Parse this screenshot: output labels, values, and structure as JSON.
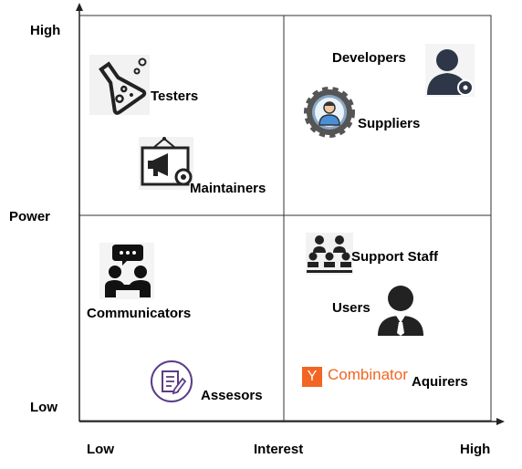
{
  "axes": {
    "y_title": "Power",
    "y_high": "High",
    "y_low": "Low",
    "x_title": "Interest",
    "x_low": "Low",
    "x_high": "High"
  },
  "stakeholders": {
    "testers": "Testers",
    "maintainers": "Maintainers",
    "developers": "Developers",
    "suppliers": "Suppliers",
    "communicators": "Communicators",
    "assesors": "Assesors",
    "support_staff": "Support Staff",
    "users": "Users",
    "aquirers": "Aquirers"
  },
  "logo": {
    "letter": "Y",
    "text": "Combinator",
    "color": "#f26522"
  },
  "icons": {
    "testers": "flask-icon",
    "maintainers": "megaphone-board-icon",
    "developers": "person-gear-icon",
    "suppliers": "gear-person-icon",
    "communicators": "people-chat-icon",
    "assesors": "document-edit-icon",
    "support_staff": "audience-icon",
    "users": "business-person-icon"
  }
}
